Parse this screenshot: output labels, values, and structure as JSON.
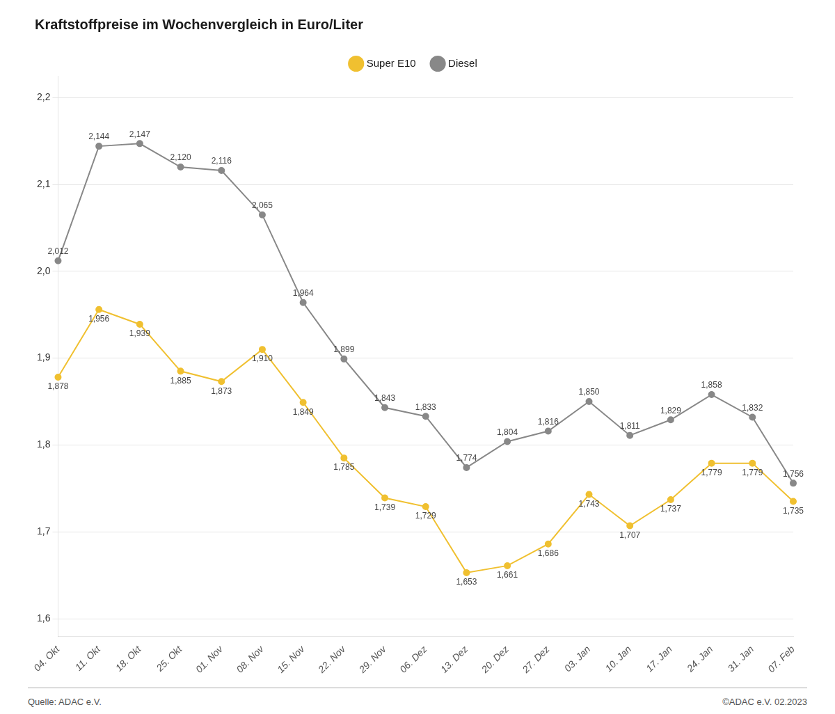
{
  "chart_data": {
    "type": "line",
    "title": "Kraftstoffpreise im Wochenvergleich in Euro/Liter",
    "categories": [
      "04. Okt",
      "11. Okt",
      "18. Okt",
      "25. Okt",
      "01. Nov",
      "08. Nov",
      "15. Nov",
      "22. Nov",
      "29. Nov",
      "06. Dez",
      "13. Dez",
      "20. Dez",
      "27. Dez",
      "03. Jan",
      "10. Jan",
      "17. Jan",
      "24. Jan",
      "31. Jan",
      "07. Feb"
    ],
    "series": [
      {
        "name": "Super E10",
        "color": "#f0c030",
        "values": [
          1.878,
          1.956,
          1.939,
          1.885,
          1.873,
          1.91,
          1.849,
          1.785,
          1.739,
          1.729,
          1.653,
          1.661,
          1.686,
          1.743,
          1.707,
          1.737,
          1.779,
          1.779,
          1.735
        ],
        "value_labels": [
          "1,878",
          "1,956",
          "1,939",
          "1,885",
          "1,873",
          "1,910",
          "1,849",
          "1,785",
          "1,739",
          "1,729",
          "1,653",
          "1,661",
          "1,686",
          "1,743",
          "1,707",
          "1,737",
          "1,779",
          "1,779",
          "1,735"
        ]
      },
      {
        "name": "Diesel",
        "color": "#888888",
        "values": [
          2.012,
          2.144,
          2.147,
          2.12,
          2.116,
          2.065,
          1.964,
          1.899,
          1.843,
          1.833,
          1.774,
          1.804,
          1.816,
          1.85,
          1.811,
          1.829,
          1.858,
          1.832,
          1.756
        ],
        "value_labels": [
          "2,012",
          "2,144",
          "2,147",
          "2,120",
          "2,116",
          "2,065",
          "1,964",
          "1,899",
          "1,843",
          "1,833",
          "1,774",
          "1,804",
          "1,816",
          "1,850",
          "1,811",
          "1,829",
          "1,858",
          "1,832",
          "1,756"
        ]
      }
    ],
    "ylim": [
      1.58,
      2.225
    ],
    "yticks": [
      {
        "value": 1.6,
        "label": "1,6"
      },
      {
        "value": 1.7,
        "label": "1,7"
      },
      {
        "value": 1.8,
        "label": "1,8"
      },
      {
        "value": 1.9,
        "label": "1,9"
      },
      {
        "value": 2.0,
        "label": "2,0"
      },
      {
        "value": 2.1,
        "label": "2,1"
      },
      {
        "value": 2.2,
        "label": "2,2"
      }
    ],
    "grid": true,
    "legend": "top",
    "data_labels": true,
    "annotations": [
      "Quelle: ADAC e.V.",
      "©ADAC e.V. 02.2023"
    ]
  }
}
